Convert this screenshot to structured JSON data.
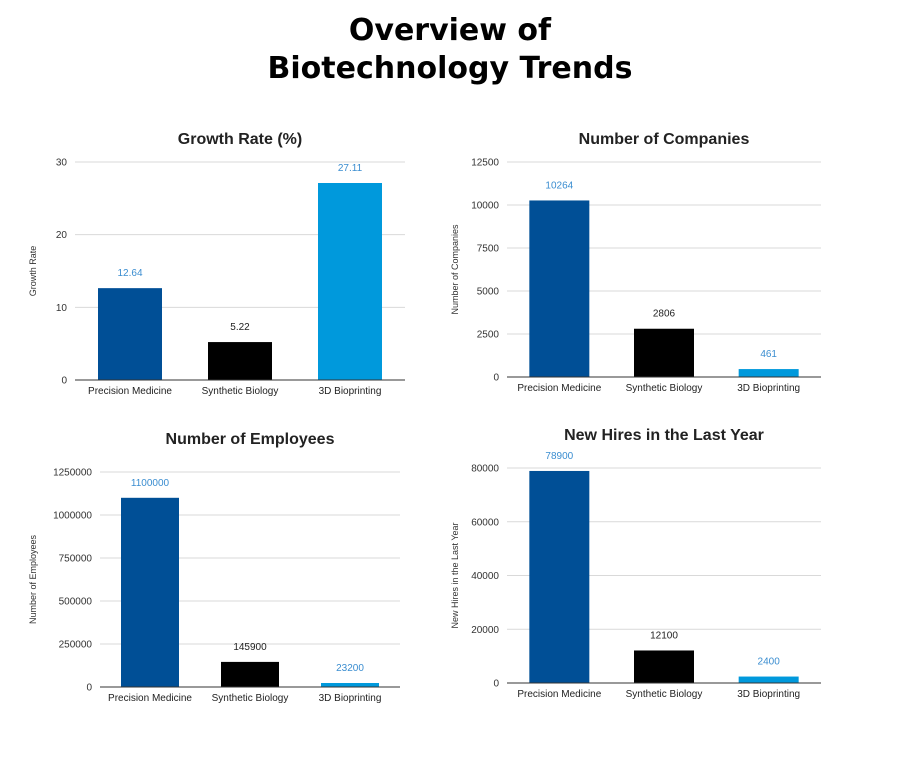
{
  "page": {
    "title_line1": "Overview of",
    "title_line2": "Biotechnology Trends"
  },
  "colors": {
    "precision_medicine": "#004f96",
    "synthetic_biology": "#000000",
    "bioprinting": "#0099dc",
    "label_blue": "#3a8dd0",
    "label_dark": "#222222"
  },
  "chart_data": [
    {
      "type": "bar",
      "title": "Growth Rate (%)",
      "xlabel": "",
      "ylabel": "Growth Rate",
      "categories": [
        "Precision Medicine",
        "Synthetic Biology",
        "3D Bioprinting"
      ],
      "values": [
        12.64,
        5.22,
        27.11
      ],
      "value_labels": [
        "12.64",
        "5.22",
        "27.11"
      ],
      "ylim": [
        0,
        30
      ],
      "yticks": [
        0,
        10,
        20,
        30
      ],
      "ytick_labels": [
        "0",
        "10",
        "20",
        "30"
      ],
      "grid": true
    },
    {
      "type": "bar",
      "title": "Number of Companies",
      "xlabel": "",
      "ylabel": "Number of Companies",
      "categories": [
        "Precision Medicine",
        "Synthetic Biology",
        "3D Bioprinting"
      ],
      "values": [
        10264,
        2806,
        461
      ],
      "value_labels": [
        "10264",
        "2806",
        "461"
      ],
      "ylim": [
        0,
        12500
      ],
      "yticks": [
        0,
        2500,
        5000,
        7500,
        10000,
        12500
      ],
      "ytick_labels": [
        "0",
        "2500",
        "5000",
        "7500",
        "10000",
        "12500"
      ],
      "grid": true
    },
    {
      "type": "bar",
      "title": "Number of Employees",
      "xlabel": "",
      "ylabel": "Number of Employees",
      "categories": [
        "Precision Medicine",
        "Synthetic Biology",
        "3D Bioprinting"
      ],
      "values": [
        1100000,
        145900,
        23200
      ],
      "value_labels": [
        "1100000",
        "145900",
        "23200"
      ],
      "ylim": [
        0,
        1250000
      ],
      "yticks": [
        0,
        250000,
        500000,
        750000,
        1000000,
        1250000
      ],
      "ytick_labels": [
        "0",
        "250000",
        "500000",
        "750000",
        "1000000",
        "1250000"
      ],
      "grid": true
    },
    {
      "type": "bar",
      "title": "New Hires in the Last Year",
      "xlabel": "",
      "ylabel": "New Hires in the Last Year",
      "categories": [
        "Precision Medicine",
        "Synthetic Biology",
        "3D Bioprinting"
      ],
      "values": [
        78900,
        12100,
        2400
      ],
      "value_labels": [
        "78900",
        "12100",
        "2400"
      ],
      "ylim": [
        0,
        80000
      ],
      "yticks": [
        0,
        20000,
        40000,
        60000,
        80000
      ],
      "ytick_labels": [
        "0",
        "20000",
        "40000",
        "60000",
        "80000"
      ],
      "grid": true
    }
  ]
}
